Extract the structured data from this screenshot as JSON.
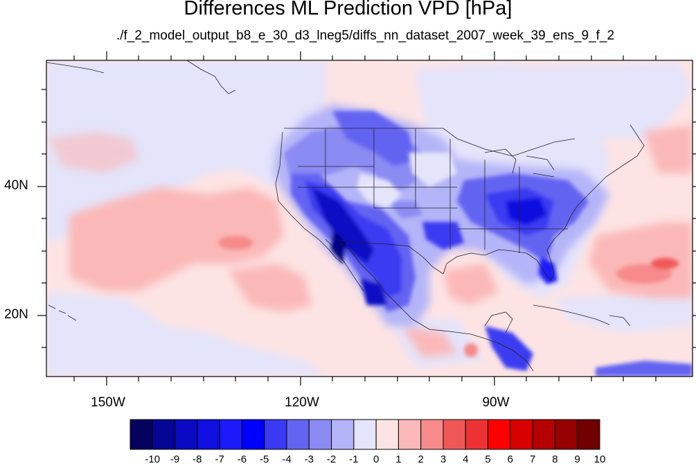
{
  "title": "Differences ML Prediction VPD [hPa]",
  "subtitle": "./f_2_model_output_b8_e_30_d3_lneg5/diffs_nn_dataset_2007_week_39_ens_9_f_2",
  "map": {
    "lon_range": [
      -160,
      -65
    ],
    "lat_range": [
      10,
      58
    ],
    "lat_tick_labels": [
      "40N",
      "20N"
    ],
    "lon_tick_labels": [
      "150W",
      "120W",
      "90W"
    ]
  },
  "colorbar": {
    "labels": [
      "-10",
      "-9",
      "-8",
      "-7",
      "-6",
      "-5",
      "-4",
      "-3",
      "-2",
      "-1",
      "0",
      "1",
      "2",
      "3",
      "4",
      "5",
      "6",
      "7",
      "8",
      "9",
      "10"
    ],
    "colors": [
      "#03035e",
      "#050596",
      "#0a0ac3",
      "#0f0fe0",
      "#1a1afa",
      "#0000ff",
      "#3a3af2",
      "#6464f2",
      "#8b8bf4",
      "#b4b4f8",
      "#e4e4fb",
      "#fde4e4",
      "#fbb8b8",
      "#f78a8a",
      "#f05858",
      "#ec3232",
      "#ff0000",
      "#d80000",
      "#b40000",
      "#960000",
      "#700000"
    ]
  }
}
